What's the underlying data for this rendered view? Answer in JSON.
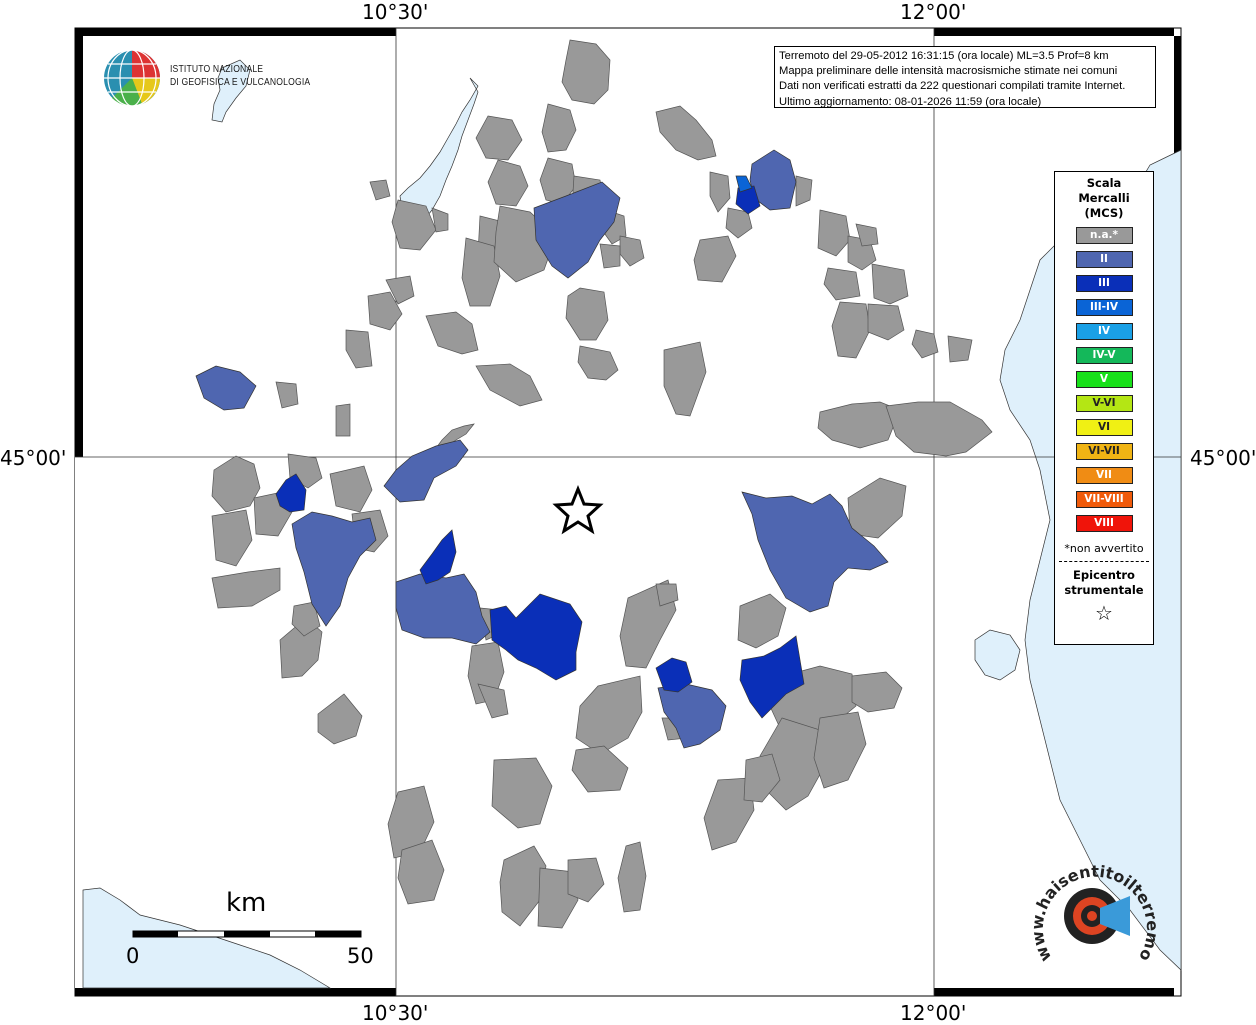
{
  "info_box": {
    "line1": "Terremoto del 29-05-2012 16:31:15 (ora locale) ML=3.5 Prof=8 km",
    "line2": "Mappa preliminare delle intensità macrosismiche stimate nei comuni",
    "line3": "Dati non verificati estratti da 222 questionari compilati tramite Internet.",
    "line4": "Ultimo aggiornamento: 08-01-2026 11:59 (ora locale)"
  },
  "logo": {
    "line1": "ISTITUTO NAZIONALE",
    "line2": "DI GEOFISICA E VULCANOLOGIA"
  },
  "coords": {
    "lon_left": "10°30'",
    "lon_right": "12°00'",
    "lat": "45°00'"
  },
  "scale_bar": {
    "unit": "km",
    "min": "0",
    "max": "50"
  },
  "legend": {
    "title_line1": "Scala",
    "title_line2": "Mercalli",
    "title_line3": "(MCS)",
    "items": [
      {
        "label": "n.a.*",
        "color": "#999999"
      },
      {
        "label": "II",
        "color": "#4f66b0"
      },
      {
        "label": "III",
        "color": "#0a2fb8"
      },
      {
        "label": "III-IV",
        "color": "#0a64d6"
      },
      {
        "label": "IV",
        "color": "#1aa0e6"
      },
      {
        "label": "IV-V",
        "color": "#14b85a"
      },
      {
        "label": "V",
        "color": "#18e01a"
      },
      {
        "label": "V-VI",
        "color": "#b4e614"
      },
      {
        "label": "VI",
        "color": "#f0f014"
      },
      {
        "label": "VI-VII",
        "color": "#f0b414"
      },
      {
        "label": "VII",
        "color": "#f08c14"
      },
      {
        "label": "VII-VIII",
        "color": "#f05a0a"
      },
      {
        "label": "VIII",
        "color": "#f0140a"
      }
    ],
    "note": "*non avvertito",
    "epicenter_line1": "Epicentro",
    "epicenter_line2": "strumentale"
  },
  "colors": {
    "water": "#dff0fb",
    "not_felt": "#999999",
    "intensity_ii": "#4f66b0",
    "intensity_iii": "#0a2fb8",
    "intensity_iii_iv": "#0a64d6"
  },
  "watermark": {
    "text": "www.haisentitoilterremoto.it"
  }
}
